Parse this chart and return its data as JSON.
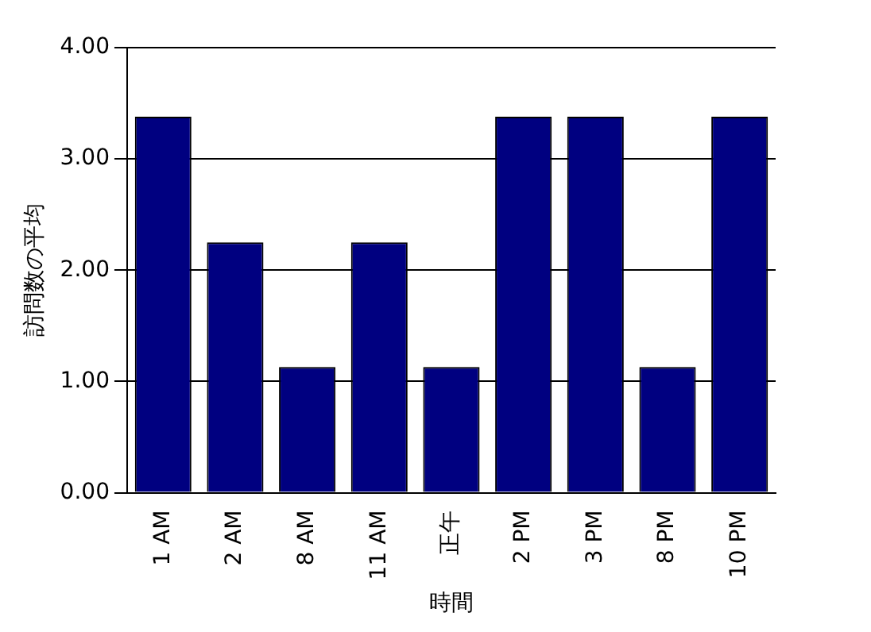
{
  "chart_data": {
    "type": "bar",
    "xlabel": "時間",
    "ylabel": "訪問数の平均",
    "categories": [
      "1 AM",
      "2 AM",
      "8 AM",
      "11 AM",
      "正午",
      "2 PM",
      "3 PM",
      "8 PM",
      "10 PM"
    ],
    "values": [
      3.38,
      2.25,
      1.13,
      2.25,
      1.13,
      3.38,
      3.38,
      1.13,
      3.38
    ],
    "color": "#000080",
    "ylim": [
      0,
      4
    ],
    "yticks": [
      {
        "value": 0,
        "label": "0.00"
      },
      {
        "value": 1,
        "label": "1.00"
      },
      {
        "value": 2,
        "label": "2.00"
      },
      {
        "value": 3,
        "label": "3.00"
      },
      {
        "value": 4,
        "label": "4.00"
      }
    ],
    "grid": "y",
    "legend": false
  }
}
